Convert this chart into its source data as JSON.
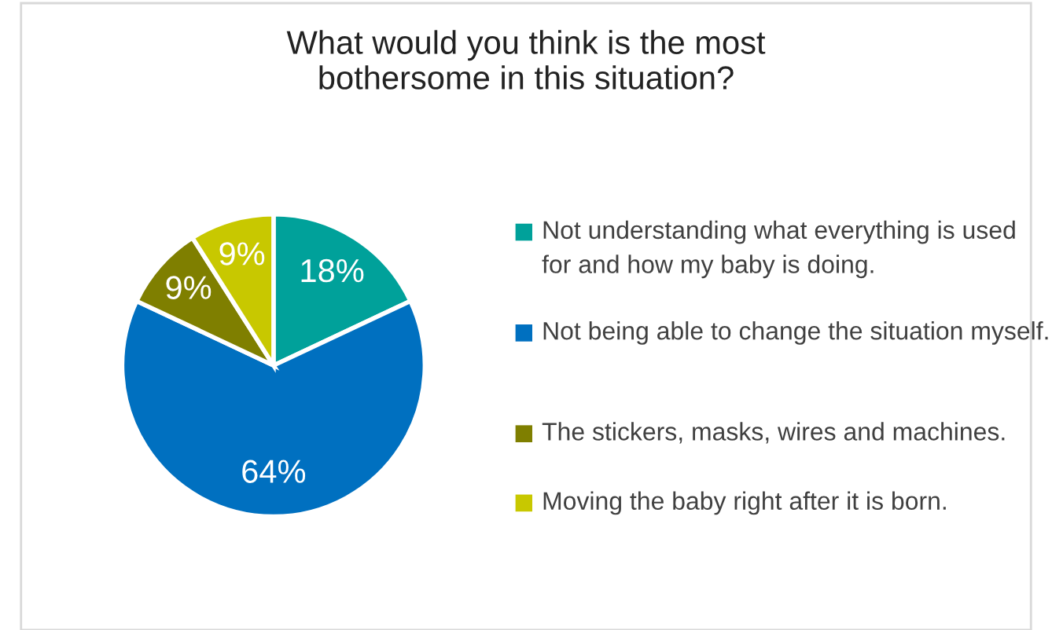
{
  "chart_data": {
    "type": "pie",
    "title": "What would you think is the most\nbothersome in this situation?",
    "categories": [
      "Not understanding what everything is used for and how my baby is doing.",
      "Not being able to change the situation myself.",
      "The stickers, masks, wires and machines.",
      "Moving the baby right after it is born."
    ],
    "values": [
      18,
      64,
      9,
      9
    ],
    "colors": [
      "#00a19a",
      "#0070c0",
      "#7f7f00",
      "#c8c800"
    ],
    "value_labels": [
      "18%",
      "64%",
      "9%",
      "9%"
    ],
    "legend": "right"
  }
}
